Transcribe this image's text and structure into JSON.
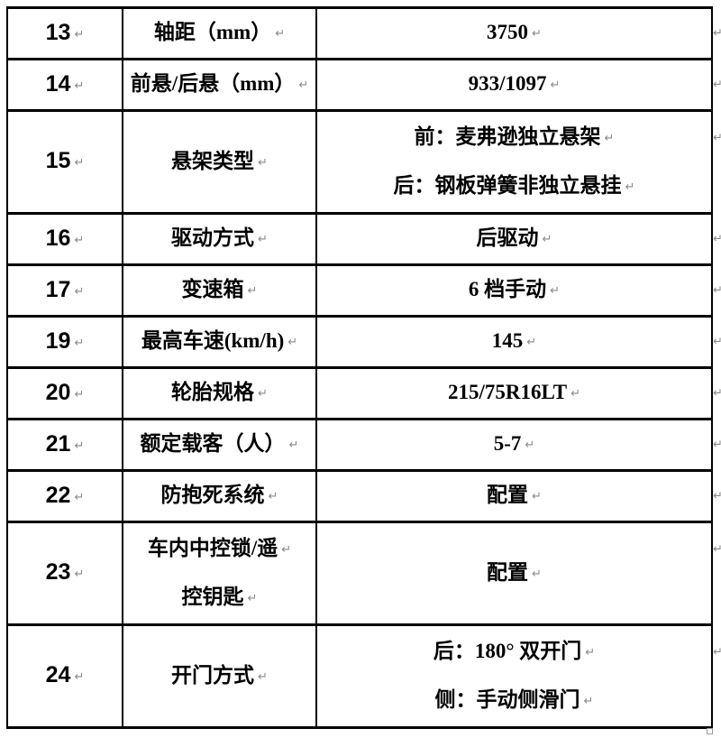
{
  "document": {
    "type": "vehicle-spec-table",
    "paragraph_mark": "↵"
  },
  "colors": {
    "border": "#000000",
    "text": "#000000",
    "paragraph_mark": "#8a8a8a",
    "background": "#ffffff"
  },
  "table": {
    "columns": [
      "row-number",
      "spec-name",
      "spec-value"
    ],
    "rows": [
      {
        "num": "13",
        "label": [
          "轴距（mm）"
        ],
        "value": [
          "3750"
        ]
      },
      {
        "num": "14",
        "label": [
          "前悬/后悬（mm）"
        ],
        "value": [
          "933/1097"
        ]
      },
      {
        "num": "15",
        "label": [
          "悬架类型"
        ],
        "value": [
          "前：麦弗逊独立悬架",
          "后：钢板弹簧非独立悬挂"
        ]
      },
      {
        "num": "16",
        "label": [
          "驱动方式"
        ],
        "value": [
          "后驱动"
        ]
      },
      {
        "num": "17",
        "label": [
          "变速箱"
        ],
        "value": [
          "6 档手动"
        ]
      },
      {
        "num": "19",
        "label": [
          "最高车速(km/h)"
        ],
        "value": [
          "145"
        ]
      },
      {
        "num": "20",
        "label": [
          "轮胎规格"
        ],
        "value": [
          "215/75R16LT"
        ]
      },
      {
        "num": "21",
        "label": [
          "额定载客（人）"
        ],
        "value": [
          "5-7"
        ]
      },
      {
        "num": "22",
        "label": [
          "防抱死系统"
        ],
        "value": [
          "配置"
        ]
      },
      {
        "num": "23",
        "label": [
          "车内中控锁/遥",
          "控钥匙"
        ],
        "value": [
          "配置"
        ]
      },
      {
        "num": "24",
        "label": [
          "开门方式"
        ],
        "value": [
          "后：180° 双开门",
          "侧：手动侧滑门"
        ]
      }
    ]
  }
}
